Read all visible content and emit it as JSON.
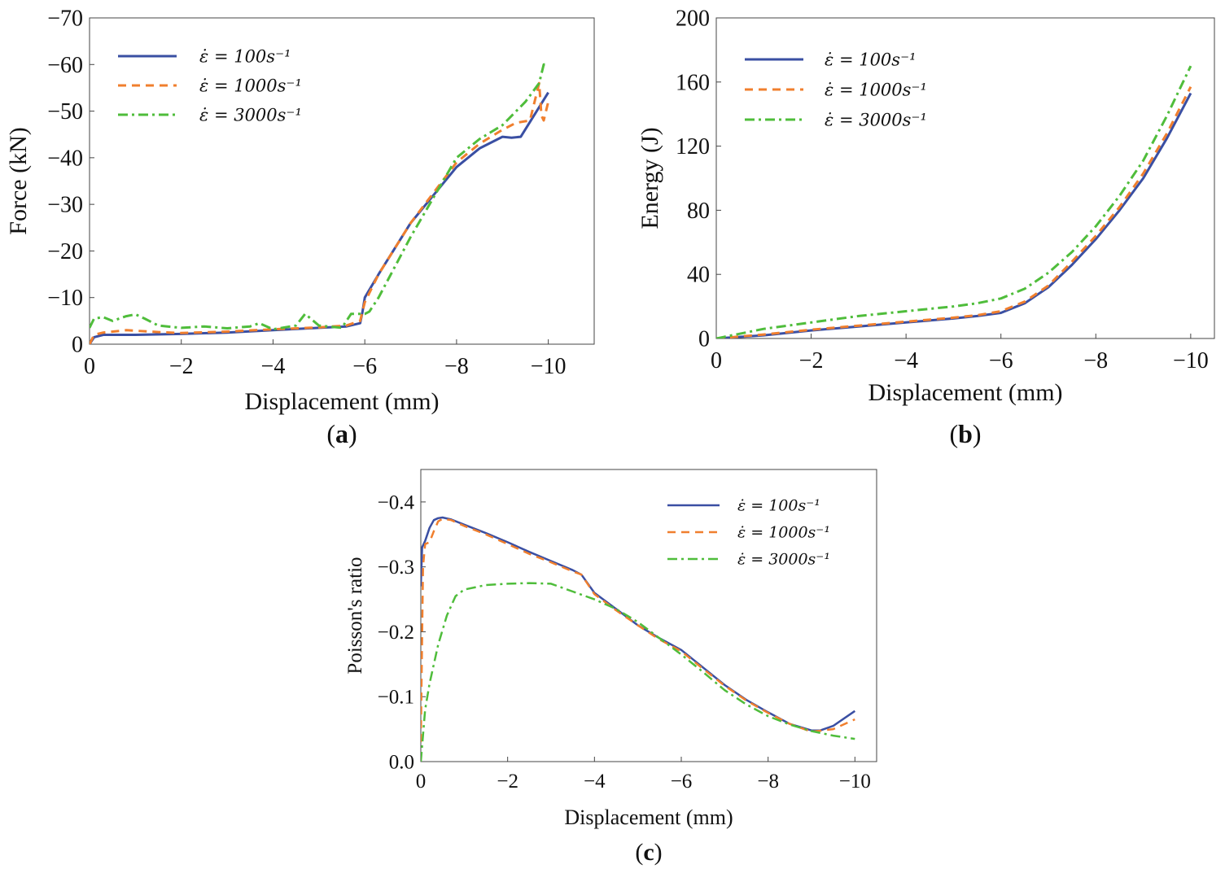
{
  "colors": {
    "s100": "#3a4fa3",
    "s1000": "#f07f2e",
    "s3000": "#4fbd3b"
  },
  "legend": [
    "ε̇ = 100s⁻¹",
    "ε̇ = 1000s⁻¹",
    "ε̇ = 3000s⁻¹"
  ],
  "chart_data": [
    {
      "id": "a",
      "type": "line",
      "panel_label": "a",
      "xlabel": "Displacement (mm)",
      "ylabel": "Force (kN)",
      "xlim": [
        0,
        -11
      ],
      "ylim": [
        0,
        -70
      ],
      "xticks": [
        0,
        -2,
        -4,
        -6,
        -8,
        -10
      ],
      "xtick_labels": [
        "0",
        "−2",
        "−4",
        "−6",
        "−8",
        "−10"
      ],
      "yticks": [
        0,
        -10,
        -20,
        -30,
        -40,
        -50,
        -60,
        -70
      ],
      "ytick_labels": [
        "0",
        "−10",
        "−20",
        "−30",
        "−40",
        "−50",
        "−60",
        "−70"
      ],
      "series": [
        {
          "name": "ε̇ = 100s⁻¹",
          "style": "solid",
          "x": [
            0,
            -0.1,
            -0.3,
            -1,
            -2,
            -3,
            -4,
            -5,
            -5.6,
            -5.9,
            -5.95,
            -6,
            -6.3,
            -7,
            -8,
            -8.5,
            -9,
            -9.2,
            -9.4,
            -10
          ],
          "y": [
            0,
            -1.5,
            -2,
            -2,
            -2.2,
            -2.5,
            -3,
            -3.5,
            -3.8,
            -4.5,
            -7,
            -10,
            -15,
            -26,
            -38,
            -42,
            -44.5,
            -44.3,
            -44.5,
            -54
          ]
        },
        {
          "name": "ε̇ = 1000s⁻¹",
          "style": "dash",
          "x": [
            0,
            -0.1,
            -0.3,
            -0.8,
            -1.5,
            -2,
            -3,
            -4,
            -5,
            -5.6,
            -5.9,
            -6,
            -6.3,
            -7,
            -8,
            -8.5,
            -9,
            -9.3,
            -9.6,
            -9.8,
            -9.85,
            -9.9,
            -10
          ],
          "y": [
            0,
            -2,
            -2.5,
            -3,
            -2.6,
            -2.4,
            -2.7,
            -3.2,
            -3.6,
            -4,
            -5,
            -9,
            -15,
            -26,
            -39,
            -43,
            -46,
            -47.5,
            -48,
            -56,
            -49,
            -48,
            -52
          ]
        },
        {
          "name": "ε̇ = 3000s⁻¹",
          "style": "dashdot",
          "x": [
            0,
            -0.1,
            -0.3,
            -0.5,
            -0.8,
            -1,
            -1.2,
            -1.5,
            -2,
            -2.5,
            -3,
            -3.5,
            -3.7,
            -4,
            -4.5,
            -4.7,
            -5,
            -5.5,
            -5.7,
            -6,
            -6.1,
            -6.3,
            -7,
            -8,
            -8.5,
            -9,
            -9.5,
            -9.8,
            -9.9,
            -10
          ],
          "y": [
            -3.5,
            -5.5,
            -5.8,
            -5,
            -6,
            -6.4,
            -5.5,
            -4,
            -3.5,
            -3.8,
            -3.4,
            -3.8,
            -4.5,
            -3.2,
            -4,
            -6.5,
            -4,
            -3.5,
            -6.5,
            -6.5,
            -7,
            -10,
            -23,
            -40,
            -44,
            -47,
            -52,
            -56,
            -60,
            -60
          ]
        }
      ]
    },
    {
      "id": "b",
      "type": "line",
      "panel_label": "b",
      "xlabel": "Displacement (mm)",
      "ylabel": "Energy (J)",
      "xlim": [
        0,
        -10.5
      ],
      "ylim": [
        0,
        200
      ],
      "xticks": [
        0,
        -2,
        -4,
        -6,
        -8,
        -10
      ],
      "xtick_labels": [
        "0",
        "−2",
        "−4",
        "−6",
        "−8",
        "−10"
      ],
      "yticks": [
        0,
        40,
        80,
        120,
        160,
        200
      ],
      "ytick_labels": [
        "0",
        "40",
        "80",
        "120",
        "160",
        "200"
      ],
      "series": [
        {
          "name": "ε̇ = 100s⁻¹",
          "style": "solid",
          "x": [
            0,
            -1,
            -2,
            -3,
            -4,
            -5,
            -5.5,
            -6,
            -6.5,
            -7,
            -7.5,
            -8,
            -8.5,
            -9,
            -9.5,
            -10
          ],
          "y": [
            0,
            2,
            5,
            7.5,
            10,
            12.5,
            14,
            16,
            22,
            32,
            46,
            62,
            80,
            100,
            125,
            153
          ]
        },
        {
          "name": "ε̇ = 1000s⁻¹",
          "style": "dash",
          "x": [
            0,
            -1,
            -2,
            -3,
            -4,
            -5,
            -5.5,
            -6,
            -6.5,
            -7,
            -7.5,
            -8,
            -8.5,
            -9,
            -9.5,
            -10
          ],
          "y": [
            0,
            2.5,
            5.5,
            8,
            10.5,
            13,
            14.5,
            17,
            23,
            33,
            48,
            64,
            82,
            103,
            128,
            157
          ]
        },
        {
          "name": "ε̇ = 3000s⁻¹",
          "style": "dashdot",
          "x": [
            0,
            -1,
            -2,
            -3,
            -4,
            -5,
            -5.5,
            -6,
            -6.5,
            -7,
            -7.5,
            -8,
            -8.5,
            -9,
            -9.5,
            -10
          ],
          "y": [
            0,
            6,
            10,
            14,
            17,
            20,
            22,
            25,
            31,
            41,
            54,
            70,
            89,
            111,
            139,
            170
          ]
        }
      ]
    },
    {
      "id": "c",
      "type": "line",
      "panel_label": "c",
      "xlabel": "Displacement (mm)",
      "ylabel": "Poisson's ratio",
      "xlim": [
        0,
        -10.5
      ],
      "ylim": [
        0,
        -0.45
      ],
      "xticks": [
        0,
        -2,
        -4,
        -6,
        -8,
        -10
      ],
      "xtick_labels": [
        "0",
        "−2",
        "−4",
        "−6",
        "−8",
        "−10"
      ],
      "yticks": [
        0,
        -0.1,
        -0.2,
        -0.3,
        -0.4
      ],
      "ytick_labels": [
        "0.0",
        "−0.1",
        "−0.2",
        "−0.3",
        "−0.4"
      ],
      "series": [
        {
          "name": "ε̇ = 100s⁻¹",
          "style": "solid",
          "x": [
            0,
            -0.03,
            -0.1,
            -0.2,
            -0.3,
            -0.4,
            -0.5,
            -0.7,
            -1,
            -1.5,
            -2,
            -2.5,
            -3,
            -3.5,
            -3.7,
            -4,
            -4.5,
            -5,
            -5.5,
            -6,
            -6.5,
            -7,
            -7.5,
            -8,
            -8.5,
            -9,
            -9.2,
            -9.5,
            -10
          ],
          "y": [
            -0.27,
            -0.33,
            -0.34,
            -0.36,
            -0.372,
            -0.375,
            -0.376,
            -0.373,
            -0.365,
            -0.352,
            -0.338,
            -0.323,
            -0.309,
            -0.295,
            -0.288,
            -0.26,
            -0.235,
            -0.21,
            -0.19,
            -0.172,
            -0.145,
            -0.118,
            -0.095,
            -0.076,
            -0.058,
            -0.048,
            -0.048,
            -0.055,
            -0.078
          ]
        },
        {
          "name": "ε̇ = 1000s⁻¹",
          "style": "dash",
          "x": [
            0,
            -0.05,
            -0.1,
            -0.2,
            -0.3,
            -0.4,
            -0.5,
            -0.7,
            -1,
            -1.5,
            -2,
            -2.5,
            -3,
            -3.5,
            -3.7,
            -4,
            -4.5,
            -5,
            -5.5,
            -6,
            -6.5,
            -7,
            -7.5,
            -8,
            -8.5,
            -9,
            -9.5,
            -10
          ],
          "y": [
            -0.03,
            -0.3,
            -0.335,
            -0.338,
            -0.355,
            -0.37,
            -0.374,
            -0.372,
            -0.363,
            -0.35,
            -0.335,
            -0.32,
            -0.307,
            -0.293,
            -0.288,
            -0.258,
            -0.233,
            -0.21,
            -0.188,
            -0.17,
            -0.143,
            -0.117,
            -0.094,
            -0.075,
            -0.058,
            -0.046,
            -0.05,
            -0.065
          ]
        },
        {
          "name": "ε̇ = 3000s⁻¹",
          "style": "dashdot",
          "x": [
            0,
            -0.1,
            -0.2,
            -0.4,
            -0.6,
            -0.8,
            -1,
            -1.5,
            -2,
            -2.5,
            -3,
            -3.5,
            -4,
            -4.5,
            -5,
            -5.5,
            -6,
            -6.5,
            -7,
            -7.5,
            -8,
            -8.5,
            -9,
            -9.5,
            -10
          ],
          "y": [
            0,
            -0.08,
            -0.12,
            -0.18,
            -0.225,
            -0.255,
            -0.265,
            -0.272,
            -0.274,
            -0.275,
            -0.274,
            -0.262,
            -0.25,
            -0.235,
            -0.215,
            -0.19,
            -0.165,
            -0.138,
            -0.11,
            -0.088,
            -0.07,
            -0.057,
            -0.047,
            -0.04,
            -0.035
          ]
        }
      ]
    }
  ]
}
